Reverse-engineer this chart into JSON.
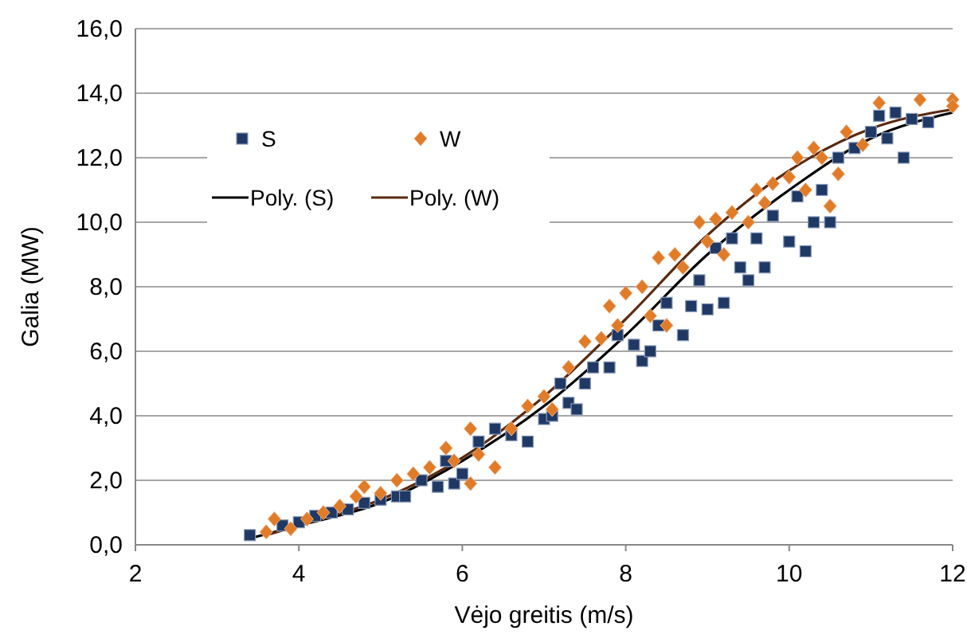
{
  "chart_data": {
    "type": "scatter",
    "xlabel": "Vėjo greitis (m/s)",
    "ylabel": "Galia (MW)",
    "xlim": [
      2,
      12
    ],
    "xticks": [
      2,
      4,
      6,
      8,
      10,
      12
    ],
    "ylim": [
      0,
      16
    ],
    "yticks": [
      {
        "value": 0,
        "label": "0,0"
      },
      {
        "value": 2,
        "label": "2,0"
      },
      {
        "value": 4,
        "label": "4,0"
      },
      {
        "value": 6,
        "label": "6,0"
      },
      {
        "value": 8,
        "label": "8,0"
      },
      {
        "value": 10,
        "label": "10,0"
      },
      {
        "value": 12,
        "label": "12,0"
      },
      {
        "value": 14,
        "label": "14,0"
      },
      {
        "value": 16,
        "label": "16,0"
      }
    ],
    "grid": "y",
    "legend": "top left",
    "series": [
      {
        "name": "S",
        "marker": "square",
        "color": "#1f3864",
        "x": [
          3.4,
          3.8,
          4.0,
          4.2,
          4.4,
          4.6,
          4.8,
          5.0,
          5.2,
          5.3,
          5.5,
          5.7,
          5.8,
          5.9,
          6.0,
          6.2,
          6.4,
          6.6,
          6.8,
          7.0,
          7.1,
          7.2,
          7.3,
          7.4,
          7.5,
          7.6,
          7.8,
          7.9,
          8.1,
          8.2,
          8.3,
          8.4,
          8.5,
          8.7,
          8.8,
          8.9,
          9.0,
          9.1,
          9.2,
          9.3,
          9.4,
          9.5,
          9.6,
          9.7,
          9.8,
          10.0,
          10.1,
          10.2,
          10.3,
          10.4,
          10.5,
          10.6,
          10.8,
          11.0,
          11.1,
          11.2,
          11.3,
          11.4,
          11.5,
          11.7
        ],
        "values": [
          0.3,
          0.6,
          0.7,
          0.9,
          1.0,
          1.1,
          1.3,
          1.4,
          1.5,
          1.5,
          2.0,
          1.8,
          2.6,
          1.9,
          2.2,
          3.2,
          3.6,
          3.4,
          3.2,
          3.9,
          4.0,
          5.0,
          4.4,
          4.2,
          5.0,
          5.5,
          5.5,
          6.5,
          6.2,
          5.7,
          6.0,
          6.8,
          7.5,
          6.5,
          7.4,
          8.2,
          7.3,
          9.2,
          7.5,
          9.5,
          8.6,
          8.2,
          9.5,
          8.6,
          10.2,
          9.4,
          10.8,
          9.1,
          10.0,
          11.0,
          10.0,
          12.0,
          12.3,
          12.8,
          13.3,
          12.6,
          13.4,
          12.0,
          13.2,
          13.1
        ]
      },
      {
        "name": "W",
        "marker": "diamond",
        "color": "#e07b28",
        "x": [
          3.6,
          3.7,
          3.9,
          4.1,
          4.3,
          4.5,
          4.7,
          4.8,
          5.0,
          5.2,
          5.4,
          5.6,
          5.8,
          5.9,
          6.1,
          6.1,
          6.2,
          6.4,
          6.6,
          6.8,
          7.0,
          7.1,
          7.3,
          7.5,
          7.7,
          7.8,
          7.9,
          8.0,
          8.2,
          8.3,
          8.4,
          8.5,
          8.6,
          8.7,
          8.9,
          9.0,
          9.1,
          9.2,
          9.3,
          9.5,
          9.6,
          9.7,
          9.8,
          10.0,
          10.1,
          10.2,
          10.3,
          10.4,
          10.5,
          10.6,
          10.7,
          10.9,
          11.1,
          11.6,
          12.0,
          12.0
        ],
        "values": [
          0.4,
          0.8,
          0.5,
          0.8,
          1.0,
          1.2,
          1.5,
          1.8,
          1.6,
          2.0,
          2.2,
          2.4,
          3.0,
          2.6,
          3.6,
          1.9,
          2.8,
          2.4,
          3.6,
          4.3,
          4.6,
          4.2,
          5.5,
          6.3,
          6.4,
          7.4,
          6.8,
          7.8,
          8.0,
          7.1,
          8.9,
          6.8,
          9.0,
          8.6,
          10.0,
          9.4,
          10.1,
          9.0,
          10.3,
          10.0,
          11.0,
          10.6,
          11.2,
          11.4,
          12.0,
          11.0,
          12.3,
          12.0,
          10.5,
          11.5,
          12.8,
          12.4,
          13.7,
          13.8,
          13.8,
          13.6
        ]
      },
      {
        "name": "Poly. (S)",
        "type": "line",
        "marker": "none",
        "color": "#000000",
        "x": [
          3.4,
          4,
          5,
          6,
          7,
          8,
          9,
          10,
          11,
          12
        ],
        "values": [
          0.2,
          0.6,
          1.3,
          2.6,
          4.3,
          6.5,
          9.0,
          11.0,
          12.6,
          13.4
        ]
      },
      {
        "name": "Poly. (W)",
        "type": "line",
        "marker": "none",
        "color": "#5a2a10",
        "x": [
          3.6,
          4,
          5,
          6,
          7,
          8,
          9,
          10,
          11,
          12
        ],
        "values": [
          0.3,
          0.6,
          1.4,
          2.7,
          4.6,
          7.0,
          9.6,
          11.6,
          12.9,
          13.5
        ]
      }
    ]
  }
}
